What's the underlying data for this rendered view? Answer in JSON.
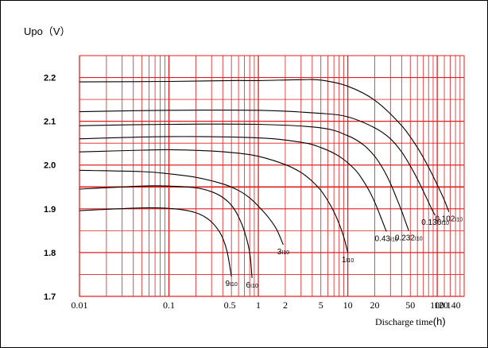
{
  "chart_data": {
    "type": "line",
    "ylabel": "Upo（V）",
    "xlabel": "Discharge time",
    "xlabel_unit": "(h)",
    "x_scale": "log",
    "xlim": [
      0.01,
      200
    ],
    "ylim": [
      1.7,
      2.25
    ],
    "grid": true,
    "grid_color": "#e02020",
    "curve_color": "#000000",
    "x_ticks": [
      {
        "value": 0.01,
        "label": "0.01"
      },
      {
        "value": 0.1,
        "label": "0.1"
      },
      {
        "value": 0.5,
        "label": "0.5"
      },
      {
        "value": 1,
        "label": "1"
      },
      {
        "value": 2,
        "label": "2"
      },
      {
        "value": 5,
        "label": "5"
      },
      {
        "value": 10,
        "label": "10"
      },
      {
        "value": 20,
        "label": "20"
      },
      {
        "value": 50,
        "label": "50"
      },
      {
        "value": 100,
        "label": "100"
      },
      {
        "value": 120,
        "label": "120"
      },
      {
        "value": 140,
        "label": "140"
      }
    ],
    "y_ticks": [
      {
        "value": 1.7,
        "label": "1.7"
      },
      {
        "value": 1.8,
        "label": "1.8"
      },
      {
        "value": 1.9,
        "label": "1.9"
      },
      {
        "value": 2.0,
        "label": "2.0"
      },
      {
        "value": 2.1,
        "label": "2.1"
      },
      {
        "value": 2.2,
        "label": "2.2"
      }
    ],
    "series": [
      {
        "name": "9I10",
        "name_main": "9",
        "name_sub": "I10",
        "x": [
          0.01,
          0.05,
          0.1,
          0.15,
          0.2,
          0.25,
          0.3,
          0.35,
          0.4,
          0.45,
          0.5
        ],
        "y": [
          1.896,
          1.902,
          1.901,
          1.897,
          1.891,
          1.882,
          1.87,
          1.854,
          1.833,
          1.8,
          1.745
        ]
      },
      {
        "name": "6I10",
        "name_main": "6",
        "name_sub": "I10",
        "x": [
          0.01,
          0.05,
          0.1,
          0.2,
          0.3,
          0.4,
          0.5,
          0.6,
          0.7,
          0.8,
          0.85
        ],
        "y": [
          1.945,
          1.952,
          1.952,
          1.948,
          1.939,
          1.926,
          1.908,
          1.882,
          1.848,
          1.8,
          1.742
        ]
      },
      {
        "name": "3I10",
        "name_main": "3",
        "name_sub": "I10",
        "x": [
          0.01,
          0.05,
          0.1,
          0.2,
          0.4,
          0.6,
          0.8,
          1.0,
          1.3,
          1.6,
          1.9
        ],
        "y": [
          1.988,
          1.985,
          1.98,
          1.972,
          1.957,
          1.942,
          1.925,
          1.906,
          1.88,
          1.853,
          1.818
        ]
      },
      {
        "name": "1I10",
        "name_main": "1",
        "name_sub": "I10",
        "x": [
          0.01,
          0.05,
          0.1,
          0.3,
          0.6,
          1,
          2,
          3,
          4,
          5,
          6,
          7,
          8,
          9,
          10
        ],
        "y": [
          2.03,
          2.034,
          2.035,
          2.032,
          2.027,
          2.02,
          2.001,
          1.983,
          1.963,
          1.942,
          1.918,
          1.893,
          1.866,
          1.836,
          1.8
        ]
      },
      {
        "name": "0.43I10",
        "name_main": "0.43",
        "name_sub": "I10",
        "x": [
          0.01,
          0.1,
          1,
          3,
          5,
          8,
          12,
          15,
          18,
          21,
          24,
          27
        ],
        "y": [
          2.06,
          2.065,
          2.062,
          2.052,
          2.04,
          2.02,
          1.99,
          1.963,
          1.935,
          1.905,
          1.875,
          1.848
        ]
      },
      {
        "name": "0.232I10",
        "name_main": "0.232",
        "name_sub": "I10",
        "x": [
          0.01,
          0.1,
          1,
          5,
          10,
          15,
          20,
          25,
          30,
          35,
          40,
          45,
          48
        ],
        "y": [
          2.09,
          2.093,
          2.093,
          2.085,
          2.067,
          2.046,
          2.02,
          1.99,
          1.958,
          1.925,
          1.895,
          1.866,
          1.85
        ]
      },
      {
        "name": "0.136I10",
        "name_main": "0.136",
        "name_sub": "I10",
        "x": [
          0.01,
          0.1,
          1,
          5,
          10,
          20,
          30,
          40,
          50,
          60,
          70,
          80,
          90,
          95
        ],
        "y": [
          2.122,
          2.125,
          2.125,
          2.118,
          2.11,
          2.085,
          2.06,
          2.03,
          1.998,
          1.968,
          1.94,
          1.915,
          1.893,
          1.885
        ]
      },
      {
        "name": "0.102I10",
        "name_main": "0.102",
        "name_sub": "I10",
        "x": [
          0.01,
          0.1,
          0.5,
          1,
          3,
          5,
          10,
          20,
          40,
          60,
          80,
          100,
          120,
          135
        ],
        "y": [
          2.19,
          2.191,
          2.193,
          2.193,
          2.195,
          2.194,
          2.18,
          2.148,
          2.09,
          2.04,
          1.995,
          1.955,
          1.92,
          1.893
        ]
      }
    ]
  }
}
